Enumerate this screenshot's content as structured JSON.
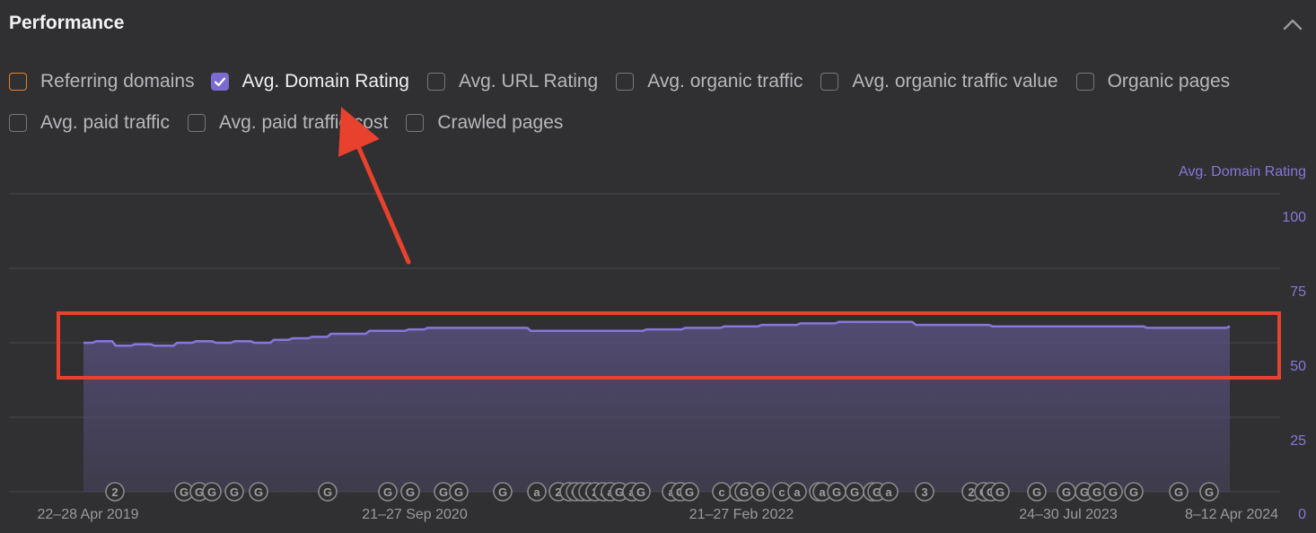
{
  "panel": {
    "title": "Performance",
    "collapse_icon": "chevron-up-icon"
  },
  "filters": {
    "row1": [
      {
        "label": "Referring domains",
        "checked": false,
        "border": "#e8812a"
      },
      {
        "label": "Avg. Domain Rating",
        "checked": true,
        "fill": "#7b6bd1"
      },
      {
        "label": "Avg. URL Rating",
        "checked": false
      },
      {
        "label": "Avg. organic traffic",
        "checked": false
      },
      {
        "label": "Avg. organic traffic value",
        "checked": false
      },
      {
        "label": "Organic pages",
        "checked": false
      }
    ],
    "row2": [
      {
        "label": "Avg. paid traffic",
        "checked": false
      },
      {
        "label": "Avg. paid traffic cost",
        "checked": false
      },
      {
        "label": "Crawled pages",
        "checked": false
      }
    ]
  },
  "colors": {
    "series": "#8677d9",
    "annotation_arrow": "#e8412e",
    "highlight_box": "#e8412e"
  },
  "chart_data": {
    "type": "area",
    "ylabel": "Avg. Domain Rating",
    "ylim": [
      0,
      100
    ],
    "yticks": [
      0,
      25,
      50,
      75,
      100
    ],
    "x_tick_labels": [
      "22–28 Apr 2019",
      "21–27 Sep 2020",
      "21–27 Feb 2022",
      "24–30 Jul 2023",
      "8–12 Apr 2024"
    ],
    "series": [
      {
        "x": [
          "2019-04-25",
          "2019-05-15",
          "2019-06-15",
          "2019-07-15",
          "2019-08-15",
          "2019-09-20",
          "2019-10-20",
          "2019-11-20",
          "2019-12-20",
          "2020-01-20",
          "2020-02-20",
          "2020-03-20",
          "2020-04-20",
          "2020-05-20",
          "2020-06-20",
          "2020-07-20",
          "2020-08-20",
          "2020-09-20",
          "2020-10-20",
          "2020-12-01",
          "2021-02-01",
          "2021-04-01",
          "2021-06-01",
          "2021-08-01",
          "2021-10-01",
          "2021-12-01",
          "2022-02-01",
          "2022-04-01",
          "2022-06-01",
          "2022-08-01",
          "2022-10-01",
          "2022-12-01",
          "2023-02-01",
          "2023-04-01",
          "2023-06-01",
          "2023-08-01",
          "2023-10-01",
          "2023-12-01",
          "2024-02-01",
          "2024-04-10"
        ],
        "values": [
          50,
          50.5,
          49,
          49.5,
          49,
          50,
          50.5,
          50,
          50.5,
          50,
          51,
          51.5,
          52,
          53,
          53,
          54,
          54,
          54.5,
          55,
          55,
          55,
          54,
          54,
          54,
          54.5,
          55,
          55.5,
          56,
          56.5,
          57,
          57,
          56,
          56,
          55.5,
          55.5,
          55.5,
          55.5,
          55,
          55,
          55.5
        ]
      }
    ],
    "event_markers": {
      "labels": [
        "2",
        "G",
        "G",
        "G",
        "G",
        "G",
        "G",
        "G",
        "G",
        "G",
        "G",
        "G",
        "a",
        "2",
        "a",
        "G",
        "a",
        "c",
        "2",
        "a",
        "a",
        "G",
        "a",
        "G",
        "a",
        "G",
        "G",
        "c",
        "G",
        "G",
        "G",
        "c",
        "a",
        "G",
        "a",
        "G",
        "G",
        "2",
        "G",
        "a",
        "3"
      ]
    }
  }
}
